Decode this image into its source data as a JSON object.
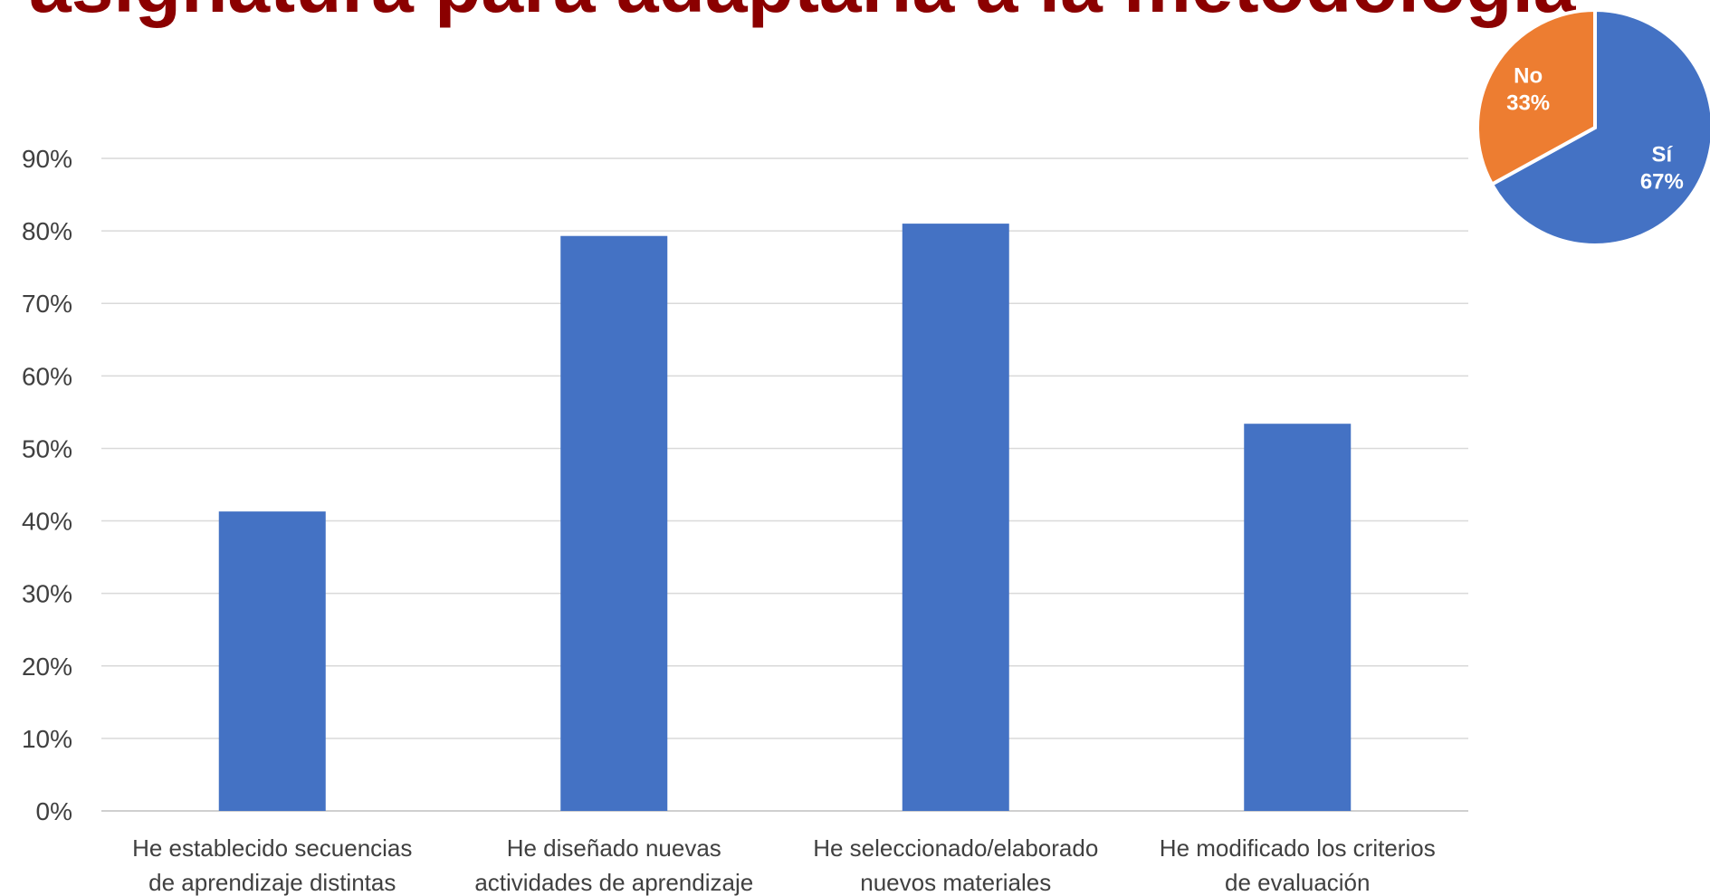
{
  "slide": {
    "title": "asignatura para adaptarla a la metodología",
    "title_color": "#8b0000"
  },
  "chart_data": [
    {
      "type": "bar",
      "categories": [
        [
          "He establecido secuencias",
          "de aprendizaje distintas"
        ],
        [
          "He diseñado nuevas",
          "actividades de aprendizaje"
        ],
        [
          "He seleccionado/elaborado",
          "nuevos materiales"
        ],
        [
          "He modificado los criterios",
          "de evaluación"
        ]
      ],
      "values": [
        41.3,
        79.3,
        81.0,
        53.4
      ],
      "ylim": [
        0,
        90
      ],
      "yticks": [
        0,
        10,
        20,
        30,
        40,
        50,
        60,
        70,
        80,
        90
      ],
      "ytick_suffix": "%",
      "grid": true,
      "bar_color": "#4472c4"
    },
    {
      "type": "pie",
      "slices": [
        {
          "label": "Sí",
          "value": 67,
          "display": "67%",
          "color": "#4472c4"
        },
        {
          "label": "No",
          "value": 33,
          "display": "33%",
          "color": "#ed7d31"
        }
      ]
    }
  ]
}
